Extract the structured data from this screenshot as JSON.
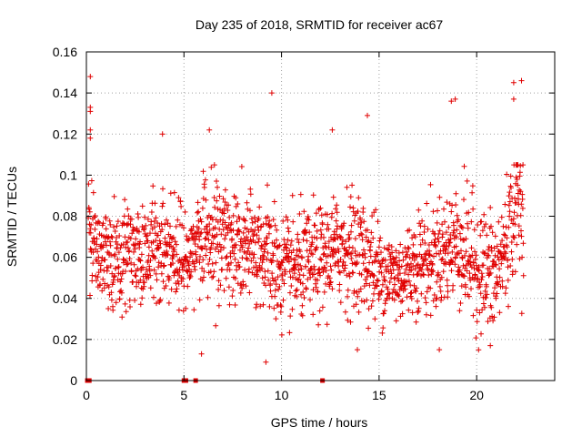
{
  "chart_data": {
    "type": "scatter",
    "title": "Day 235 of 2018, SRMTID for receiver ac67",
    "xlabel": "GPS time / hours",
    "ylabel": "SRMTID / TECUs",
    "xlim": [
      0,
      24
    ],
    "ylim": [
      0,
      0.16
    ],
    "x_ticks": [
      0,
      5,
      10,
      15,
      20
    ],
    "x_tick_labels": [
      "0",
      "5",
      "10",
      "15",
      "20"
    ],
    "y_ticks": [
      0,
      0.02,
      0.04,
      0.06,
      0.08,
      0.1,
      0.12,
      0.14,
      0.16
    ],
    "y_tick_labels": [
      "0",
      "0.02",
      "0.04",
      "0.06",
      "0.08",
      "0.1",
      "0.12",
      "0.14",
      "0.16"
    ],
    "grid": true,
    "marker": "plus",
    "color": "#e00000",
    "zero_value_times": [
      0.05,
      0.15,
      5.0,
      5.1,
      5.6,
      12.1
    ],
    "notable_points": [
      {
        "x": 0.2,
        "y": 0.148
      },
      {
        "x": 0.2,
        "y": 0.133
      },
      {
        "x": 0.2,
        "y": 0.131
      },
      {
        "x": 0.2,
        "y": 0.122
      },
      {
        "x": 0.2,
        "y": 0.118
      },
      {
        "x": 3.9,
        "y": 0.12
      },
      {
        "x": 6.3,
        "y": 0.122
      },
      {
        "x": 9.5,
        "y": 0.14
      },
      {
        "x": 9.2,
        "y": 0.009
      },
      {
        "x": 12.6,
        "y": 0.122
      },
      {
        "x": 14.4,
        "y": 0.129
      },
      {
        "x": 18.7,
        "y": 0.136
      },
      {
        "x": 18.9,
        "y": 0.137
      },
      {
        "x": 21.9,
        "y": 0.145
      },
      {
        "x": 22.3,
        "y": 0.146
      },
      {
        "x": 21.9,
        "y": 0.137
      },
      {
        "x": 20.7,
        "y": 0.017
      },
      {
        "x": 5.9,
        "y": 0.013
      }
    ],
    "series": [
      {
        "name": "SRMTID",
        "x_range": [
          0,
          22.4
        ],
        "typical_range": [
          0.02,
          0.1
        ],
        "hourly_mean": [
          0.07,
          0.062,
          0.058,
          0.065,
          0.066,
          0.058,
          0.07,
          0.068,
          0.063,
          0.064,
          0.052,
          0.055,
          0.058,
          0.065,
          0.062,
          0.053,
          0.05,
          0.058,
          0.06,
          0.068,
          0.055,
          0.05,
          0.085
        ],
        "hourly_spread": [
          0.018,
          0.018,
          0.018,
          0.017,
          0.018,
          0.017,
          0.02,
          0.018,
          0.018,
          0.019,
          0.017,
          0.017,
          0.017,
          0.019,
          0.018,
          0.015,
          0.015,
          0.017,
          0.018,
          0.02,
          0.02,
          0.02,
          0.025
        ]
      }
    ]
  }
}
